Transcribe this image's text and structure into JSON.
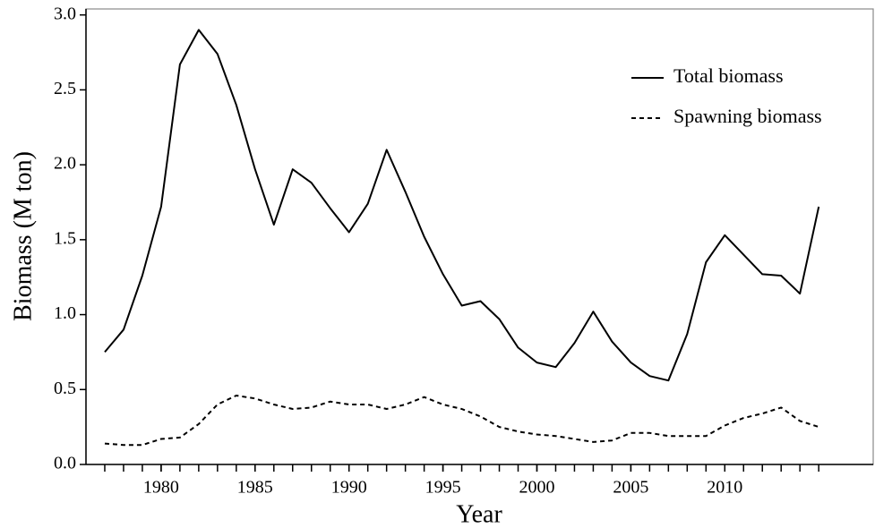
{
  "chart_data": {
    "type": "line",
    "x_label": "Year",
    "y_label": "Biomass (M ton)",
    "x": [
      1977,
      1978,
      1979,
      1980,
      1981,
      1982,
      1983,
      1984,
      1985,
      1986,
      1987,
      1988,
      1989,
      1990,
      1991,
      1992,
      1993,
      1994,
      1995,
      1996,
      1997,
      1998,
      1999,
      2000,
      2001,
      2002,
      2003,
      2004,
      2005,
      2006,
      2007,
      2008,
      2009,
      2010,
      2011,
      2012,
      2013,
      2014,
      2015
    ],
    "series": [
      {
        "name": "Total biomass",
        "color": "#000000",
        "linestyle": "solid",
        "values": [
          0.75,
          0.9,
          1.26,
          1.72,
          2.67,
          2.9,
          2.74,
          2.4,
          1.97,
          1.6,
          1.97,
          1.88,
          1.71,
          1.55,
          1.74,
          2.1,
          1.82,
          1.52,
          1.27,
          1.06,
          1.09,
          0.97,
          0.78,
          0.68,
          0.65,
          0.81,
          1.02,
          0.82,
          0.68,
          0.59,
          0.56,
          0.87,
          1.35,
          1.53,
          1.4,
          1.27,
          1.26,
          1.14,
          1.72
        ]
      },
      {
        "name": "Spawning biomass",
        "color": "#000000",
        "linestyle": "dashed",
        "values": [
          0.14,
          0.13,
          0.13,
          0.17,
          0.18,
          0.27,
          0.4,
          0.46,
          0.44,
          0.4,
          0.37,
          0.38,
          0.42,
          0.4,
          0.4,
          0.37,
          0.4,
          0.45,
          0.4,
          0.37,
          0.32,
          0.25,
          0.22,
          0.2,
          0.19,
          0.17,
          0.15,
          0.16,
          0.21,
          0.21,
          0.19,
          0.19,
          0.19,
          0.26,
          0.31,
          0.34,
          0.38,
          0.29,
          0.25
        ]
      }
    ],
    "xlim": [
      1976,
      2017.9
    ],
    "xticks": [
      1980,
      1985,
      1990,
      1995,
      2000,
      2005,
      2010
    ],
    "xminorticks": [
      1977,
      1978,
      1979,
      1980,
      1981,
      1982,
      1983,
      1984,
      1985,
      1986,
      1987,
      1988,
      1989,
      1990,
      1991,
      1992,
      1993,
      1994,
      1995,
      1996,
      1997,
      1998,
      1999,
      2000,
      2001,
      2002,
      2003,
      2004,
      2005,
      2006,
      2007,
      2008,
      2009,
      2010,
      2011,
      2012,
      2013,
      2014,
      2015
    ],
    "ylim": [
      0,
      3.04
    ],
    "yticks": [
      {
        "value": 0,
        "label": "0.0"
      },
      0.5,
      {
        "value": 1,
        "label": "1.0"
      },
      1.5,
      {
        "value": 2,
        "label": "2.0"
      },
      2.5,
      {
        "value": 3,
        "label": "3.0"
      }
    ],
    "legend": "top-right"
  }
}
